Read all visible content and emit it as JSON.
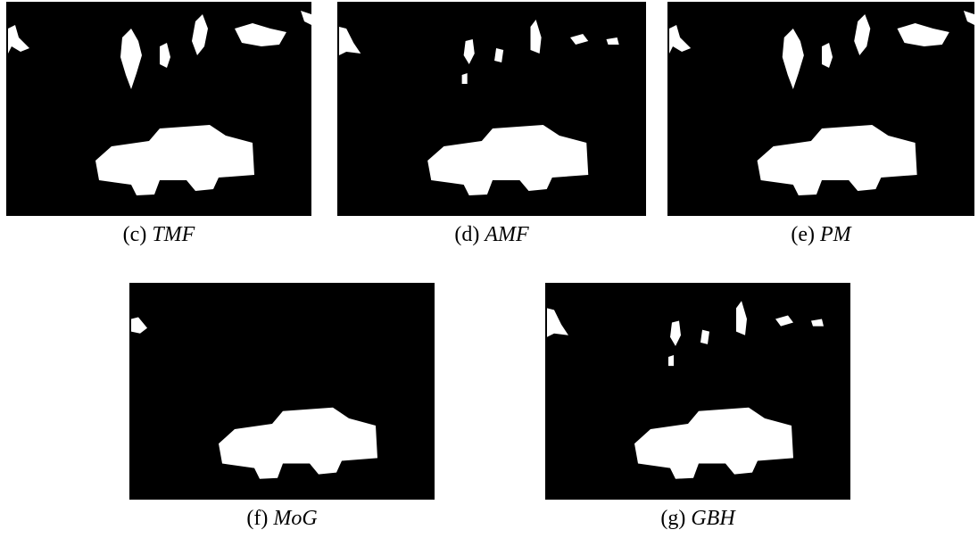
{
  "panels": [
    {
      "label": "(c)",
      "method": "TMF"
    },
    {
      "label": "(d)",
      "method": "AMF"
    },
    {
      "label": "(e)",
      "method": "PM"
    },
    {
      "label": "(f)",
      "method": "MoG"
    },
    {
      "label": "(g)",
      "method": "GBH"
    }
  ]
}
